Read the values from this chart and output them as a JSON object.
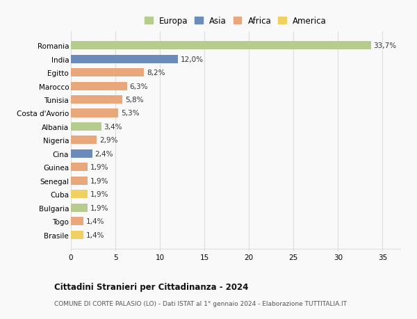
{
  "countries": [
    "Brasile",
    "Togo",
    "Bulgaria",
    "Cuba",
    "Senegal",
    "Guinea",
    "Cina",
    "Nigeria",
    "Albania",
    "Costa d'Avorio",
    "Tunisia",
    "Marocco",
    "Egitto",
    "India",
    "Romania"
  ],
  "values": [
    1.4,
    1.4,
    1.9,
    1.9,
    1.9,
    1.9,
    2.4,
    2.9,
    3.4,
    5.3,
    5.8,
    6.3,
    8.2,
    12.0,
    33.7
  ],
  "labels": [
    "1,4%",
    "1,4%",
    "1,9%",
    "1,9%",
    "1,9%",
    "1,9%",
    "2,4%",
    "2,9%",
    "3,4%",
    "5,3%",
    "5,8%",
    "6,3%",
    "8,2%",
    "12,0%",
    "33,7%"
  ],
  "continents": [
    "America",
    "Africa",
    "Europa",
    "America",
    "Africa",
    "Africa",
    "Asia",
    "Africa",
    "Europa",
    "Africa",
    "Africa",
    "Africa",
    "Africa",
    "Asia",
    "Europa"
  ],
  "colors": {
    "Europa": "#b5cc8e",
    "Asia": "#6b8cba",
    "Africa": "#e8a87c",
    "America": "#f0d060"
  },
  "title": "Cittadini Stranieri per Cittadinanza - 2024",
  "subtitle": "COMUNE DI CORTE PALASIO (LO) - Dati ISTAT al 1° gennaio 2024 - Elaborazione TUTTITALIA.IT",
  "xlim": [
    0,
    37
  ],
  "xticks": [
    0,
    5,
    10,
    15,
    20,
    25,
    30,
    35
  ],
  "bg_color": "#f9f9f9",
  "grid_color": "#dddddd",
  "bar_height": 0.62
}
